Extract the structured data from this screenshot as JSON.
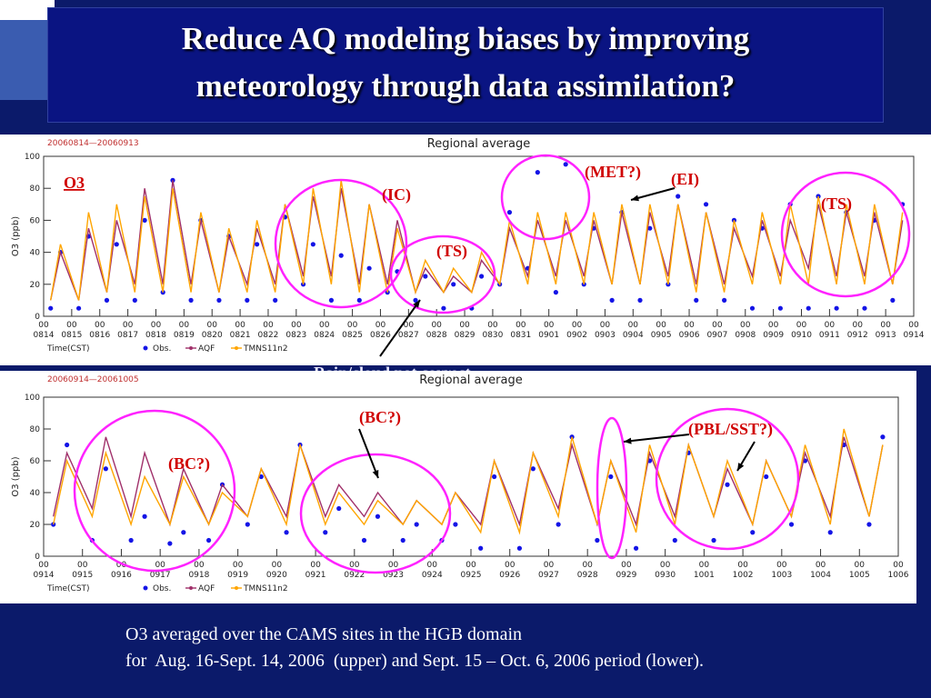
{
  "slide": {
    "title": "Reduce AQ modeling biases by improving meteorology through data assimilation?",
    "caption": [
      "O3 averaged over the CAMS sites in the HGB domain",
      "for  Aug. 16-Sept. 14, 2006  (upper) and Sept. 15 – Oct. 6, 2006 period (lower)."
    ]
  },
  "chart_data": [
    {
      "type": "line",
      "title": "Regional average",
      "subtitle": "20060814—20060913",
      "xlabel": "Time(CST)",
      "ylabel": "O3 (ppb)",
      "annotations": [
        "O3",
        "(IC)",
        "(TS)",
        "(MET?)",
        "(EI)",
        "(TS)",
        "Rain/cloud not correct"
      ],
      "xlim": [
        0,
        31
      ],
      "ylim": [
        0,
        100
      ],
      "yticks": [
        0,
        20,
        40,
        60,
        80,
        100
      ],
      "xticks": [
        {
          "value": 0,
          "label": "00 0814"
        },
        {
          "value": 1,
          "label": "00 0815"
        },
        {
          "value": 2,
          "label": "00 0816"
        },
        {
          "value": 3,
          "label": "00 0817"
        },
        {
          "value": 4,
          "label": "00 0818"
        },
        {
          "value": 5,
          "label": "00 0819"
        },
        {
          "value": 6,
          "label": "00 0820"
        },
        {
          "value": 7,
          "label": "00 0821"
        },
        {
          "value": 8,
          "label": "00 0822"
        },
        {
          "value": 9,
          "label": "00 0823"
        },
        {
          "value": 10,
          "label": "00 0824"
        },
        {
          "value": 11,
          "label": "00 0825"
        },
        {
          "value": 12,
          "label": "00 0826"
        },
        {
          "value": 13,
          "label": "00 0827"
        },
        {
          "value": 14,
          "label": "00 0828"
        },
        {
          "value": 15,
          "label": "00 0829"
        },
        {
          "value": 16,
          "label": "00 0830"
        },
        {
          "value": 17,
          "label": "00 0831"
        },
        {
          "value": 18,
          "label": "00 0901"
        },
        {
          "value": 19,
          "label": "00 0902"
        },
        {
          "value": 20,
          "label": "00 0903"
        },
        {
          "value": 21,
          "label": "00 0904"
        },
        {
          "value": 22,
          "label": "00 0905"
        },
        {
          "value": 23,
          "label": "00 0906"
        },
        {
          "value": 24,
          "label": "00 0907"
        },
        {
          "value": 25,
          "label": "00 0908"
        },
        {
          "value": 26,
          "label": "00 0909"
        },
        {
          "value": 27,
          "label": "00 0910"
        },
        {
          "value": 28,
          "label": "00 0911"
        },
        {
          "value": 29,
          "label": "00 0912"
        },
        {
          "value": 30,
          "label": "00 0913"
        },
        {
          "value": 31,
          "label": "00 0914"
        }
      ],
      "x": [
        0.25,
        0.6,
        1.25,
        1.6,
        2.25,
        2.6,
        3.25,
        3.6,
        4.25,
        4.6,
        5.25,
        5.6,
        6.25,
        6.6,
        7.25,
        7.6,
        8.25,
        8.6,
        9.25,
        9.6,
        10.25,
        10.6,
        11.25,
        11.6,
        12.25,
        12.6,
        13.25,
        13.6,
        14.25,
        14.6,
        15.25,
        15.6,
        16.25,
        16.6,
        17.25,
        17.6,
        18.25,
        18.6,
        19.25,
        19.6,
        20.25,
        20.6,
        21.25,
        21.6,
        22.25,
        22.6,
        23.25,
        23.6,
        24.25,
        24.6,
        25.25,
        25.6,
        26.25,
        26.6,
        27.25,
        27.6,
        28.25,
        28.6,
        29.25,
        29.6,
        30.25,
        30.6
      ],
      "series": [
        {
          "name": "Obs.",
          "color": "#1414e6",
          "mode": "markers",
          "values": [
            5,
            40,
            5,
            50,
            10,
            45,
            10,
            60,
            15,
            85,
            10,
            60,
            10,
            50,
            10,
            45,
            10,
            62,
            20,
            45,
            10,
            38,
            10,
            30,
            15,
            28,
            10,
            25,
            5,
            20,
            5,
            25,
            20,
            65,
            30,
            90,
            15,
            95,
            20,
            55,
            10,
            65,
            10,
            55,
            20,
            75,
            10,
            70,
            10,
            60,
            5,
            55,
            5,
            70,
            5,
            75,
            5,
            65,
            5,
            60,
            10,
            70
          ]
        },
        {
          "name": "AQF",
          "color": "#a0306a",
          "mode": "lines",
          "values": [
            10,
            40,
            10,
            55,
            15,
            60,
            20,
            80,
            20,
            85,
            20,
            60,
            15,
            50,
            20,
            55,
            20,
            70,
            25,
            75,
            25,
            80,
            20,
            70,
            20,
            60,
            15,
            30,
            15,
            25,
            15,
            35,
            20,
            55,
            25,
            60,
            25,
            60,
            25,
            60,
            20,
            65,
            20,
            65,
            25,
            70,
            20,
            65,
            20,
            55,
            25,
            60,
            25,
            60,
            30,
            70,
            25,
            65,
            25,
            65,
            20,
            60
          ]
        },
        {
          "name": "TMNS11n2",
          "color": "#ffa500",
          "mode": "lines",
          "values": [
            10,
            45,
            10,
            65,
            15,
            70,
            15,
            75,
            15,
            80,
            15,
            65,
            15,
            55,
            15,
            60,
            15,
            70,
            20,
            80,
            20,
            85,
            15,
            70,
            15,
            55,
            15,
            35,
            15,
            30,
            15,
            40,
            20,
            60,
            20,
            65,
            20,
            65,
            20,
            65,
            20,
            70,
            20,
            70,
            20,
            70,
            15,
            65,
            15,
            60,
            20,
            65,
            20,
            70,
            20,
            75,
            20,
            70,
            20,
            70,
            20,
            65
          ]
        }
      ]
    },
    {
      "type": "line",
      "title": "Regional average",
      "subtitle": "20060914—20061005",
      "xlabel": "Time(CST)",
      "ylabel": "O3 (ppb)",
      "annotations": [
        "(BC?)",
        "(BC?)",
        "(PBL/SST?)"
      ],
      "xlim": [
        0,
        22
      ],
      "ylim": [
        0,
        100
      ],
      "yticks": [
        0,
        20,
        40,
        60,
        80,
        100
      ],
      "xticks": [
        {
          "value": 0,
          "label": "00 0914"
        },
        {
          "value": 1,
          "label": "00 0915"
        },
        {
          "value": 2,
          "label": "00 0916"
        },
        {
          "value": 3,
          "label": "00 0917"
        },
        {
          "value": 4,
          "label": "00 0918"
        },
        {
          "value": 5,
          "label": "00 0919"
        },
        {
          "value": 6,
          "label": "00 0920"
        },
        {
          "value": 7,
          "label": "00 0921"
        },
        {
          "value": 8,
          "label": "00 0922"
        },
        {
          "value": 9,
          "label": "00 0923"
        },
        {
          "value": 10,
          "label": "00 0924"
        },
        {
          "value": 11,
          "label": "00 0925"
        },
        {
          "value": 12,
          "label": "00 0926"
        },
        {
          "value": 13,
          "label": "00 0927"
        },
        {
          "value": 14,
          "label": "00 0928"
        },
        {
          "value": 15,
          "label": "00 0929"
        },
        {
          "value": 16,
          "label": "00 0930"
        },
        {
          "value": 17,
          "label": "00 1001"
        },
        {
          "value": 18,
          "label": "00 1002"
        },
        {
          "value": 19,
          "label": "00 1003"
        },
        {
          "value": 20,
          "label": "00 1004"
        },
        {
          "value": 21,
          "label": "00 1005"
        },
        {
          "value": 22,
          "label": "00 1006"
        }
      ],
      "x": [
        0.25,
        0.6,
        1.25,
        1.6,
        2.25,
        2.6,
        3.25,
        3.6,
        4.25,
        4.6,
        5.25,
        5.6,
        6.25,
        6.6,
        7.25,
        7.6,
        8.25,
        8.6,
        9.25,
        9.6,
        10.25,
        10.6,
        11.25,
        11.6,
        12.25,
        12.6,
        13.25,
        13.6,
        14.25,
        14.6,
        15.25,
        15.6,
        16.25,
        16.6,
        17.25,
        17.6,
        18.25,
        18.6,
        19.25,
        19.6,
        20.25,
        20.6,
        21.25,
        21.6
      ],
      "series": [
        {
          "name": "Obs.",
          "color": "#1414e6",
          "mode": "markers",
          "values": [
            20,
            70,
            10,
            55,
            10,
            25,
            8,
            15,
            10,
            45,
            20,
            50,
            15,
            70,
            15,
            30,
            10,
            25,
            10,
            20,
            10,
            20,
            5,
            50,
            5,
            55,
            20,
            75,
            10,
            50,
            5,
            60,
            10,
            65,
            10,
            45,
            15,
            50,
            20,
            60,
            15,
            70,
            20,
            75
          ]
        },
        {
          "name": "AQF",
          "color": "#a0306a",
          "mode": "lines",
          "values": [
            25,
            65,
            30,
            75,
            25,
            65,
            20,
            55,
            20,
            45,
            25,
            55,
            25,
            70,
            25,
            45,
            25,
            40,
            20,
            35,
            20,
            40,
            20,
            60,
            20,
            65,
            30,
            70,
            20,
            60,
            20,
            65,
            25,
            70,
            25,
            55,
            20,
            60,
            25,
            65,
            25,
            75,
            25,
            70
          ]
        },
        {
          "name": "TMNS11n2",
          "color": "#ffa500",
          "mode": "lines",
          "values": [
            20,
            60,
            25,
            65,
            20,
            50,
            20,
            50,
            20,
            40,
            25,
            55,
            20,
            70,
            20,
            40,
            20,
            35,
            20,
            35,
            20,
            40,
            15,
            60,
            15,
            65,
            25,
            75,
            20,
            60,
            15,
            70,
            20,
            70,
            25,
            60,
            20,
            60,
            25,
            70,
            20,
            80,
            25,
            70
          ]
        }
      ]
    }
  ]
}
